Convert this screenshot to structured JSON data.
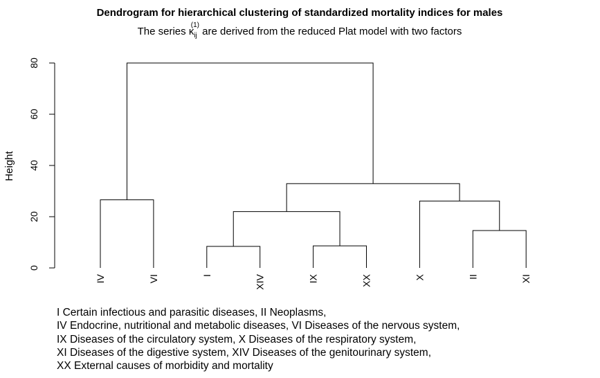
{
  "chart_data": {
    "type": "dendrogram",
    "title": "Dendrogram for hierarchical clustering of standardized mortality indices for males",
    "subtitle": {
      "before": "The series ",
      "symbol": "κ",
      "subscript": "ij",
      "superscript": "(1)",
      "after": " are derived from the reduced Plat model with two factors"
    },
    "ylabel": "Height",
    "ylim": [
      0,
      80
    ],
    "yticks": [
      0,
      20,
      40,
      60,
      80
    ],
    "leaves": [
      "IV",
      "VI",
      "I",
      "XIV",
      "IX",
      "XX",
      "X",
      "II",
      "XI"
    ],
    "merges": [
      {
        "left": "leaf:IV",
        "right": "leaf:VI",
        "height": 26.6
      },
      {
        "left": "leaf:I",
        "right": "leaf:XIV",
        "height": 8.4
      },
      {
        "left": "leaf:IX",
        "right": "leaf:XX",
        "height": 8.6
      },
      {
        "left": "node:1",
        "right": "node:2",
        "height": 22.0
      },
      {
        "left": "leaf:II",
        "right": "leaf:XI",
        "height": 14.6
      },
      {
        "left": "leaf:X",
        "right": "node:4",
        "height": 26.1
      },
      {
        "left": "node:3",
        "right": "node:5",
        "height": 32.9
      },
      {
        "left": "node:0",
        "right": "node:6",
        "height": 80.0
      }
    ]
  },
  "legend_notes": [
    "I Certain infectious and parasitic diseases, II Neoplasms,",
    "IV Endocrine, nutritional and metabolic diseases, VI Diseases of the nervous system,",
    "IX Diseases of the circulatory system, X Diseases of the respiratory system,",
    "XI Diseases of the digestive system, XIV Diseases of the genitourinary system,",
    "XX External causes of morbidity and mortality"
  ]
}
